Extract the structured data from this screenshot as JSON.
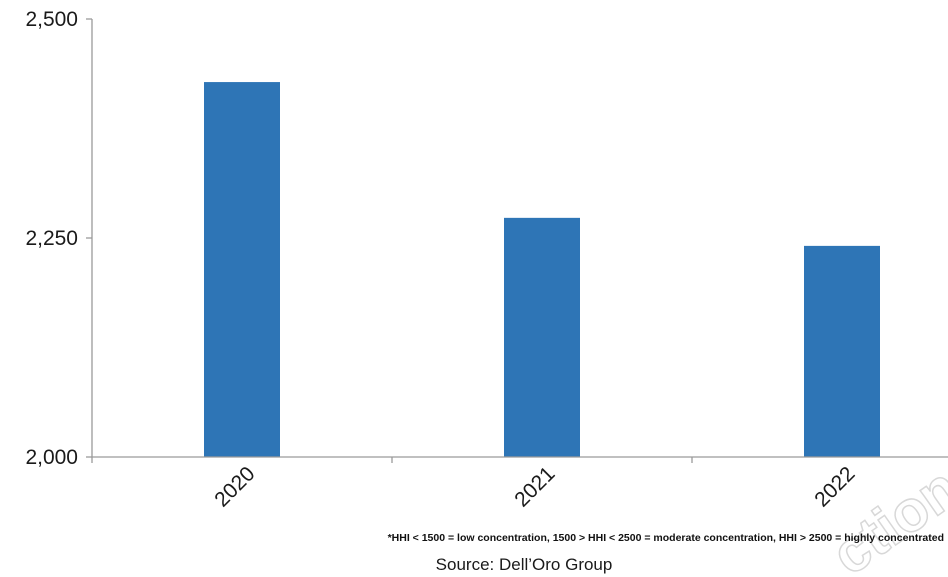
{
  "chart_data": {
    "type": "bar",
    "categories": [
      "2020",
      "2021",
      "2022"
    ],
    "values": [
      2428,
      2273,
      2241
    ],
    "ylim": [
      2000,
      2500
    ],
    "yticks": [
      2000,
      2250,
      2500
    ],
    "ytick_labels": [
      "2,000",
      "2,250",
      "2,500"
    ],
    "grid": false,
    "bar_color": "#2e75b6",
    "axis_color": "#9a9a9a",
    "footnote": "*HHI < 1500 = low concentration, 1500 > HHI < 2500 = moderate concentration, HHI > 2500 = highly concentrated",
    "source": "Source: Dell’Oro Group"
  }
}
